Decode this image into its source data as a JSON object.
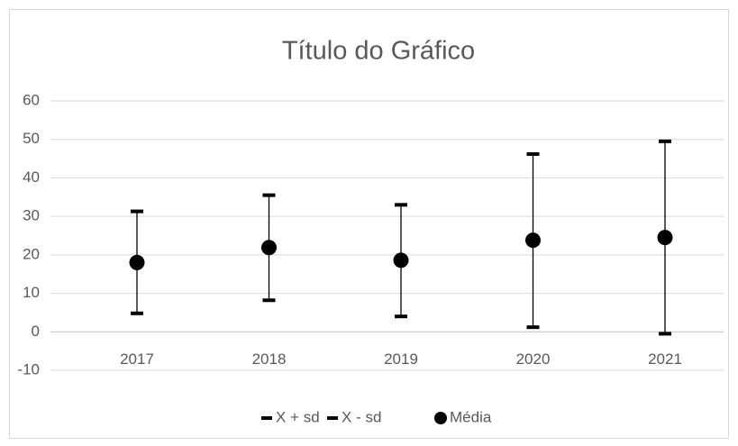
{
  "chart_data": {
    "type": "line",
    "title": "Título do Gráfico",
    "categories": [
      "2017",
      "2018",
      "2019",
      "2020",
      "2021"
    ],
    "series": [
      {
        "name": "X + sd",
        "color": "#000000",
        "marker": "dash",
        "values": [
          31.3,
          35.5,
          33.0,
          46.2,
          49.5
        ]
      },
      {
        "name": "X - sd",
        "color": "#000000",
        "marker": "dash",
        "values": [
          4.8,
          8.2,
          4.0,
          1.2,
          -0.5
        ]
      },
      {
        "name": "Média",
        "color": "#000000",
        "marker": "circle",
        "values": [
          18.0,
          21.9,
          18.6,
          23.8,
          24.5
        ]
      }
    ],
    "ylim": [
      -10,
      60
    ],
    "yticks": [
      -10,
      0,
      10,
      20,
      30,
      40,
      50,
      60
    ],
    "grid": true,
    "high_low_lines": true,
    "legend": "bottom"
  }
}
